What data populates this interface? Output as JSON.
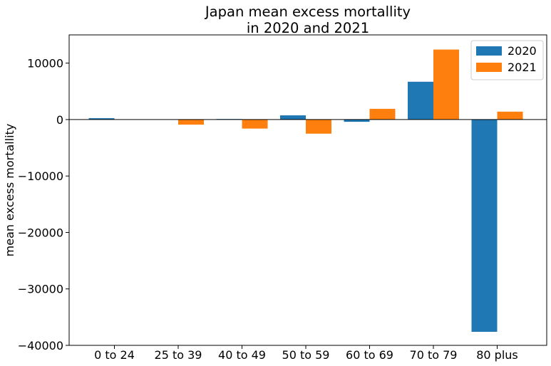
{
  "chart_data": {
    "type": "bar",
    "title_line1": "Japan mean excess mortallity",
    "title_line2": "in 2020 and 2021",
    "xlabel": "",
    "ylabel": "mean excess mortallity",
    "categories": [
      "0 to 24",
      "25 to 39",
      "40 to 49",
      "50 to 59",
      "60 to 69",
      "70 to 79",
      "80 plus"
    ],
    "series": [
      {
        "name": "2020",
        "color": "#1f77b4",
        "values": [
          250,
          0,
          100,
          750,
          -400,
          6700,
          -37600
        ]
      },
      {
        "name": "2021",
        "color": "#ff7f0e",
        "values": [
          0,
          -900,
          -1600,
          -2500,
          1900,
          12400,
          1400
        ]
      }
    ],
    "ylim": [
      -40000,
      15000
    ],
    "yticks": [
      10000,
      0,
      -10000,
      -20000,
      -30000,
      -40000
    ],
    "ytick_labels": [
      "10000",
      "0",
      "−10000",
      "−20000",
      "−30000",
      "−40000"
    ],
    "legend_position": "upper right",
    "grid": false,
    "zero_line": true
  }
}
